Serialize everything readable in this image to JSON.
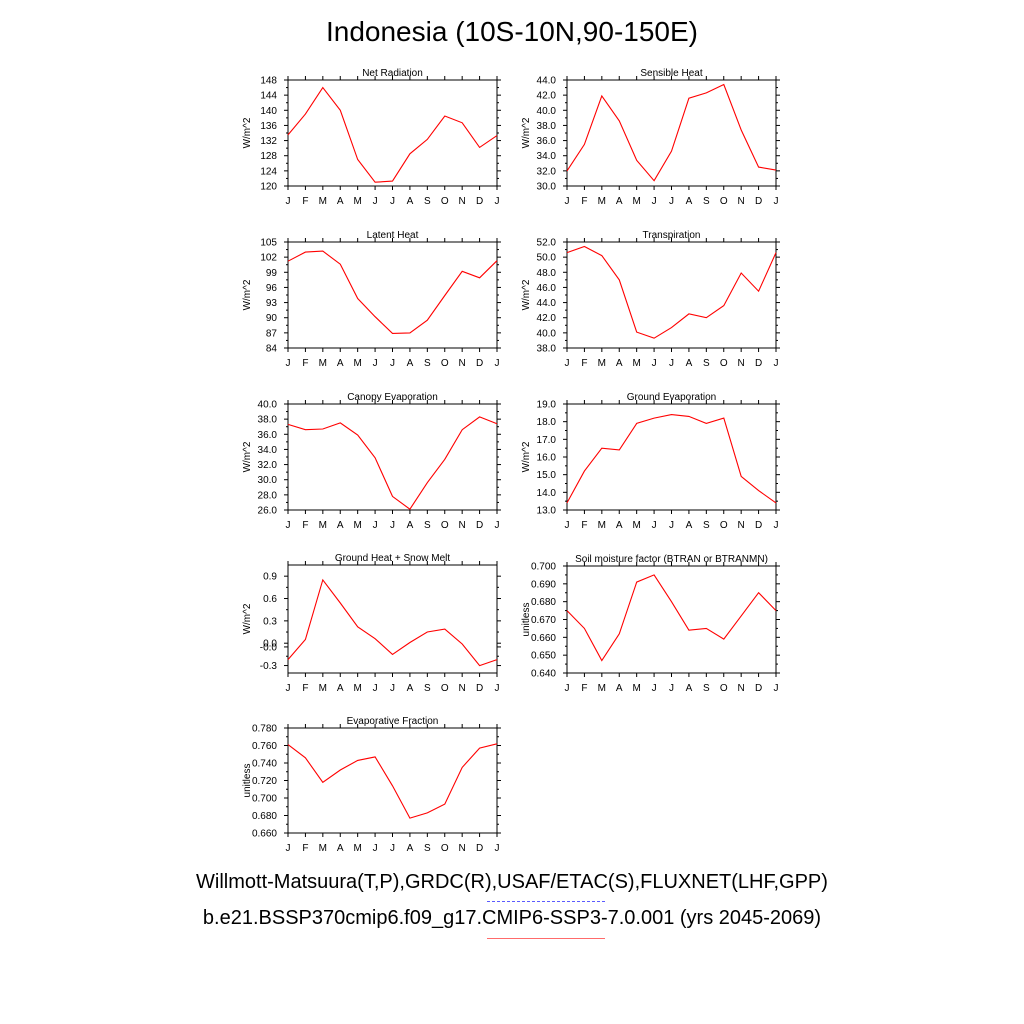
{
  "title": "Indonesia (10S-10N,90-150E)",
  "footer": {
    "observations": "Willmott-Matsuura(T,P),GRDC(R),USAF/ETAC(S),FLUXNET(LHF,GPP)",
    "model": "b.e21.BSSP370cmip6.f09_g17.CMIP6-SSP3-7.0.001 (yrs 2045-2069)",
    "observations_line_color": "#5b5bff",
    "model_line_color": "#ff6b6b"
  },
  "chart_data": [
    {
      "type": "line",
      "title": "Net Radiation",
      "ylabel": "W/m^2",
      "categories": [
        "J",
        "F",
        "M",
        "A",
        "M",
        "J",
        "J",
        "A",
        "S",
        "O",
        "N",
        "D",
        "J"
      ],
      "ylim": [
        120,
        148
      ],
      "yticks": [
        "120",
        "124",
        "128",
        "132",
        "136",
        "140",
        "144",
        "148"
      ],
      "values": [
        133.5,
        139.0,
        146.0,
        140.0,
        127.0,
        121.0,
        121.3,
        128.5,
        132.3,
        138.5,
        136.7,
        130.2,
        133.3
      ],
      "color": "#ff0000"
    },
    {
      "type": "line",
      "title": "Sensible Heat",
      "ylabel": "W/m^2",
      "categories": [
        "J",
        "F",
        "M",
        "A",
        "M",
        "J",
        "J",
        "A",
        "S",
        "O",
        "N",
        "D",
        "J"
      ],
      "ylim": [
        30,
        44
      ],
      "yticks": [
        "30.0",
        "32.0",
        "34.0",
        "36.0",
        "38.0",
        "40.0",
        "42.0",
        "44.0"
      ],
      "values": [
        32.0,
        35.5,
        41.9,
        38.6,
        33.4,
        30.7,
        34.6,
        41.6,
        42.3,
        43.4,
        37.4,
        32.5,
        32.1
      ],
      "color": "#ff0000"
    },
    {
      "type": "line",
      "title": "Latent Heat",
      "ylabel": "W/m^2",
      "categories": [
        "J",
        "F",
        "M",
        "A",
        "M",
        "J",
        "J",
        "A",
        "S",
        "O",
        "N",
        "D",
        "J"
      ],
      "ylim": [
        84,
        105
      ],
      "yticks": [
        "84",
        "87",
        "90",
        "93",
        "96",
        "99",
        "102",
        "105"
      ],
      "values": [
        101.2,
        103.0,
        103.2,
        100.6,
        93.8,
        90.2,
        86.9,
        87.0,
        89.5,
        94.4,
        99.2,
        97.9,
        101.3
      ],
      "color": "#ff0000"
    },
    {
      "type": "line",
      "title": "Transpiration",
      "ylabel": "W/m^2",
      "categories": [
        "J",
        "F",
        "M",
        "A",
        "M",
        "J",
        "J",
        "A",
        "S",
        "O",
        "N",
        "D",
        "J"
      ],
      "ylim": [
        38,
        52
      ],
      "yticks": [
        "38.0",
        "40.0",
        "42.0",
        "44.0",
        "46.0",
        "48.0",
        "50.0",
        "52.0"
      ],
      "values": [
        50.6,
        51.4,
        50.2,
        47.0,
        40.1,
        39.3,
        40.7,
        42.5,
        42.0,
        43.6,
        47.9,
        45.5,
        50.6
      ],
      "color": "#ff0000"
    },
    {
      "type": "line",
      "title": "Canopy Evaporation",
      "ylabel": "W/m^2",
      "categories": [
        "J",
        "F",
        "M",
        "A",
        "M",
        "J",
        "J",
        "A",
        "S",
        "O",
        "N",
        "D",
        "J"
      ],
      "ylim": [
        26,
        40
      ],
      "yticks": [
        "26.0",
        "28.0",
        "30.0",
        "32.0",
        "34.0",
        "36.0",
        "38.0",
        "40.0"
      ],
      "values": [
        37.3,
        36.6,
        36.7,
        37.5,
        35.9,
        32.9,
        27.8,
        26.1,
        29.6,
        32.7,
        36.6,
        38.3,
        37.4
      ],
      "color": "#ff0000"
    },
    {
      "type": "line",
      "title": "Ground Evaporation",
      "ylabel": "W/m^2",
      "categories": [
        "J",
        "F",
        "M",
        "A",
        "M",
        "J",
        "J",
        "A",
        "S",
        "O",
        "N",
        "D",
        "J"
      ],
      "ylim": [
        13,
        19
      ],
      "yticks": [
        "13.0",
        "14.0",
        "15.0",
        "16.0",
        "17.0",
        "18.0",
        "19.0"
      ],
      "values": [
        13.4,
        15.2,
        16.5,
        16.4,
        17.9,
        18.2,
        18.4,
        18.3,
        17.9,
        18.2,
        14.9,
        14.1,
        13.4
      ],
      "color": "#ff0000"
    },
    {
      "type": "line",
      "title": "Ground Heat + Snow Melt",
      "ylabel": "W/m^2",
      "categories": [
        "J",
        "F",
        "M",
        "A",
        "M",
        "J",
        "J",
        "A",
        "S",
        "O",
        "N",
        "D",
        "J"
      ],
      "ylim": [
        -0.4,
        1.05
      ],
      "yticks": [
        "-0.3",
        "-0.0",
        "0.0",
        "0.3",
        "0.6",
        "0.9"
      ],
      "ytick_values": [
        -0.3,
        -0.05,
        0.0,
        0.3,
        0.6,
        0.9
      ],
      "values": [
        -0.22,
        0.05,
        0.85,
        0.54,
        0.22,
        0.06,
        -0.15,
        0.01,
        0.15,
        0.19,
        -0.01,
        -0.3,
        -0.22
      ],
      "color": "#ff0000"
    },
    {
      "type": "line",
      "title": "Soil moisture factor (BTRAN or BTRANMN)",
      "ylabel": "unitless",
      "categories": [
        "J",
        "F",
        "M",
        "A",
        "M",
        "J",
        "J",
        "A",
        "S",
        "O",
        "N",
        "D",
        "J"
      ],
      "ylim": [
        0.64,
        0.7
      ],
      "yticks": [
        "0.640",
        "0.650",
        "0.660",
        "0.670",
        "0.680",
        "0.690",
        "0.700"
      ],
      "values": [
        0.675,
        0.665,
        0.647,
        0.662,
        0.691,
        0.695,
        0.68,
        0.664,
        0.665,
        0.659,
        0.672,
        0.685,
        0.675
      ],
      "color": "#ff0000"
    },
    {
      "type": "line",
      "title": "Evaporative Fraction",
      "ylabel": "unitless",
      "categories": [
        "J",
        "F",
        "M",
        "A",
        "M",
        "J",
        "J",
        "A",
        "S",
        "O",
        "N",
        "D",
        "J"
      ],
      "ylim": [
        0.66,
        0.78
      ],
      "yticks": [
        "0.660",
        "0.680",
        "0.700",
        "0.720",
        "0.740",
        "0.760",
        "0.780"
      ],
      "values": [
        0.761,
        0.746,
        0.718,
        0.732,
        0.743,
        0.747,
        0.714,
        0.677,
        0.683,
        0.693,
        0.735,
        0.757,
        0.762
      ],
      "color": "#ff0000"
    }
  ]
}
